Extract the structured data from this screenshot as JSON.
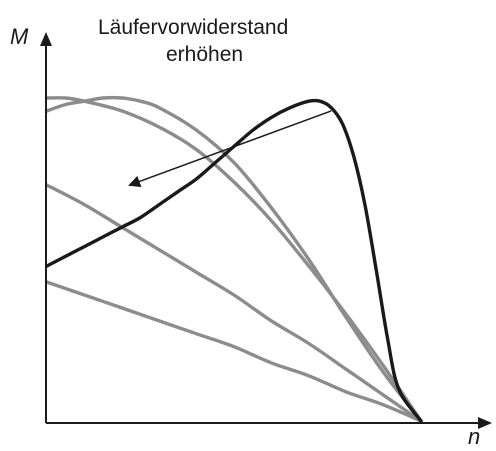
{
  "chart_data": {
    "type": "line",
    "title": "",
    "xlabel": "n",
    "ylabel": "M",
    "xlim": [
      0,
      100
    ],
    "ylim": [
      0,
      100
    ],
    "grid": false,
    "legend": "none",
    "annotation": {
      "line1": "Läufervorwiderstand",
      "line2": "erhöhen",
      "arrow_from": [
        76,
        96
      ],
      "arrow_to": [
        22,
        73
      ]
    },
    "colors": {
      "axis": "#1a1a1a",
      "base_curve": "#1a1a1a",
      "resistance_curves": "#8c8c8c"
    },
    "series": [
      {
        "color": "#1a1a1a",
        "highlight": true,
        "points": [
          [
            0,
            48
          ],
          [
            5,
            51
          ],
          [
            10,
            54
          ],
          [
            15,
            57
          ],
          [
            20,
            60
          ],
          [
            25,
            63
          ],
          [
            30,
            67
          ],
          [
            35,
            71
          ],
          [
            40,
            75
          ],
          [
            45,
            80
          ],
          [
            50,
            85
          ],
          [
            55,
            90
          ],
          [
            60,
            94
          ],
          [
            65,
            97
          ],
          [
            70,
            99
          ],
          [
            73,
            99
          ],
          [
            76,
            97
          ],
          [
            79,
            92
          ],
          [
            82,
            82
          ],
          [
            85,
            67
          ],
          [
            88,
            47
          ],
          [
            91,
            26
          ],
          [
            94,
            10
          ],
          [
            100,
            0
          ]
        ]
      },
      {
        "color": "#8c8c8c",
        "points": [
          [
            0,
            96
          ],
          [
            5,
            98
          ],
          [
            10,
            99
          ],
          [
            15,
            100
          ],
          [
            20,
            100
          ],
          [
            25,
            99
          ],
          [
            30,
            97
          ],
          [
            40,
            90
          ],
          [
            50,
            80
          ],
          [
            60,
            66
          ],
          [
            70,
            50
          ],
          [
            80,
            32
          ],
          [
            90,
            15
          ],
          [
            100,
            0
          ]
        ]
      },
      {
        "color": "#8c8c8c",
        "points": [
          [
            0,
            100
          ],
          [
            5,
            100
          ],
          [
            10,
            99
          ],
          [
            20,
            96
          ],
          [
            30,
            91
          ],
          [
            40,
            84
          ],
          [
            50,
            74
          ],
          [
            60,
            62
          ],
          [
            70,
            48
          ],
          [
            80,
            33
          ],
          [
            90,
            17
          ],
          [
            100,
            0
          ]
        ]
      },
      {
        "color": "#8c8c8c",
        "points": [
          [
            0,
            73
          ],
          [
            10,
            67
          ],
          [
            20,
            60
          ],
          [
            30,
            53
          ],
          [
            40,
            46
          ],
          [
            50,
            39
          ],
          [
            60,
            31
          ],
          [
            70,
            24
          ],
          [
            80,
            16
          ],
          [
            90,
            8
          ],
          [
            100,
            0
          ]
        ]
      },
      {
        "color": "#8c8c8c",
        "points": [
          [
            0,
            43
          ],
          [
            10,
            39
          ],
          [
            20,
            35
          ],
          [
            30,
            31
          ],
          [
            40,
            27
          ],
          [
            50,
            23
          ],
          [
            60,
            18
          ],
          [
            70,
            14
          ],
          [
            80,
            9
          ],
          [
            90,
            5
          ],
          [
            100,
            0
          ]
        ]
      }
    ]
  }
}
